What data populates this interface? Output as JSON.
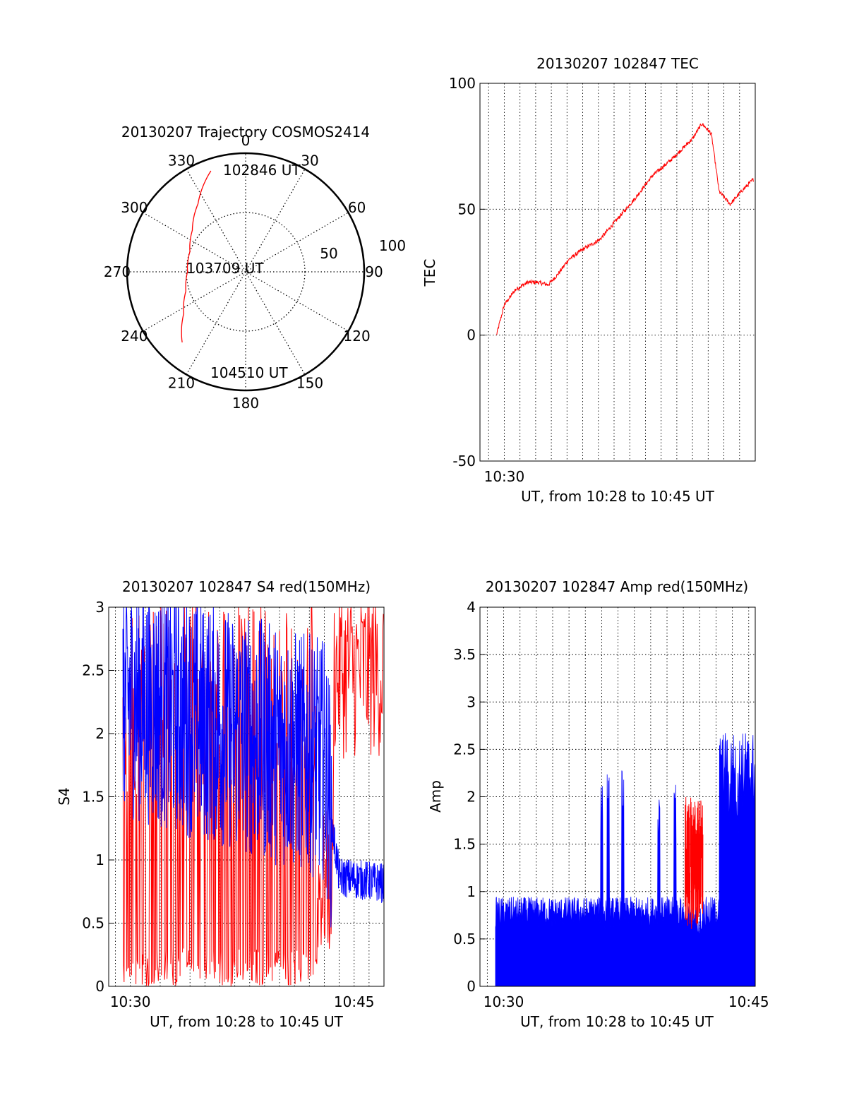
{
  "chart_data": [
    {
      "type": "polar",
      "title": "20130207 Trajectory COSMOS2414",
      "angle_labels": [
        {
          "angle": 0,
          "text": "0"
        },
        {
          "angle": 30,
          "text": "30"
        },
        {
          "angle": 60,
          "text": "60"
        },
        {
          "angle": 90,
          "text": "90"
        },
        {
          "angle": 120,
          "text": "120"
        },
        {
          "angle": 150,
          "text": "150"
        },
        {
          "angle": 180,
          "text": "180"
        },
        {
          "angle": 210,
          "text": "210"
        },
        {
          "angle": 240,
          "text": "240"
        },
        {
          "angle": 270,
          "text": "270"
        },
        {
          "angle": 300,
          "text": "300"
        },
        {
          "angle": 330,
          "text": "330"
        }
      ],
      "ring_labels": [
        "50",
        "100"
      ],
      "rmax": 100,
      "trajectory_color": "#ff0000",
      "trajectory": [
        {
          "az": 341,
          "r": 90
        },
        {
          "az": 325,
          "r": 70
        },
        {
          "az": 308,
          "r": 57
        },
        {
          "az": 290,
          "r": 50
        },
        {
          "az": 270,
          "r": 49
        },
        {
          "az": 252,
          "r": 53
        },
        {
          "az": 236,
          "r": 63
        },
        {
          "az": 222,
          "r": 80
        }
      ],
      "annotations": [
        "102846 UT",
        "103709 UT",
        "104510 UT"
      ]
    },
    {
      "type": "line",
      "title": "20130207 102847 TEC",
      "xlabel": "UT, from 10:28 to 10:45 UT",
      "ylabel": "TEC",
      "xlim": [
        10.45,
        28.0
      ],
      "ylim": [
        -50,
        100
      ],
      "yticks": [
        "-50",
        "0",
        "50",
        "100"
      ],
      "xticks": [
        {
          "value": 12.0,
          "label": "10:30"
        }
      ],
      "grid": true,
      "series": [
        {
          "color": "#ff0000",
          "x": [
            11.5,
            12.0,
            12.7,
            13.5,
            14.1,
            14.8,
            15.4,
            16.1,
            17.0,
            18.1,
            19.2,
            20.3,
            21.4,
            22.7,
            24.0,
            24.6,
            25.2,
            25.7,
            26.4,
            27.1,
            27.9
          ],
          "y": [
            0,
            12,
            18,
            21,
            21,
            20,
            24,
            30,
            34,
            38,
            46,
            54,
            63,
            70,
            78,
            84,
            80,
            57,
            52,
            57,
            62
          ]
        }
      ]
    },
    {
      "type": "line",
      "title": "20130207 102847 S4 red(150MHz)",
      "xlabel": "UT, from 10:28 to 10:45 UT",
      "ylabel": "S4",
      "xlim": [
        9.55,
        28.0
      ],
      "ylim": [
        0,
        3
      ],
      "yticks": [
        "0",
        "0.5",
        "1",
        "1.5",
        "2",
        "2.5",
        "3"
      ],
      "xticks": [
        {
          "value": 11.0,
          "label": "10:30"
        },
        {
          "value": 26.0,
          "label": "10:45"
        }
      ],
      "grid": true,
      "series": [
        {
          "color": "#ff0000",
          "x": [
            10.5,
            28.0
          ],
          "y_min": [
            0.0,
            3.0
          ]
        },
        {
          "color": "#0000ff",
          "x": [
            10.5,
            24.0,
            25.0,
            28.0
          ],
          "y": [
            2.2,
            1.7,
            0.85,
            0.8
          ]
        }
      ]
    },
    {
      "type": "line",
      "title": "20130207 102847 Amp red(150MHz)",
      "xlabel": "UT, from 10:28 to 10:45 UT",
      "ylabel": "Amp",
      "xlim": [
        9.55,
        26.4
      ],
      "ylim": [
        0,
        4
      ],
      "yticks": [
        "0",
        "0.5",
        "1",
        "1.5",
        "2",
        "2.5",
        "3",
        "3.5",
        "4"
      ],
      "xticks": [
        {
          "value": 11.0,
          "label": "10:30"
        },
        {
          "value": 26.0,
          "label": "10:45"
        }
      ],
      "grid": true,
      "series": [
        {
          "color": "#0000ff",
          "x": [
            10.5,
            17.0,
            18.5,
            22.0,
            24.5,
            26.4
          ],
          "y": [
            0.7,
            0.75,
            1.5,
            0.8,
            2.0,
            2.5
          ]
        },
        {
          "color": "#ff0000",
          "x": [
            22.1,
            23.2
          ],
          "y": [
            0.9,
            1.6
          ]
        }
      ]
    }
  ]
}
